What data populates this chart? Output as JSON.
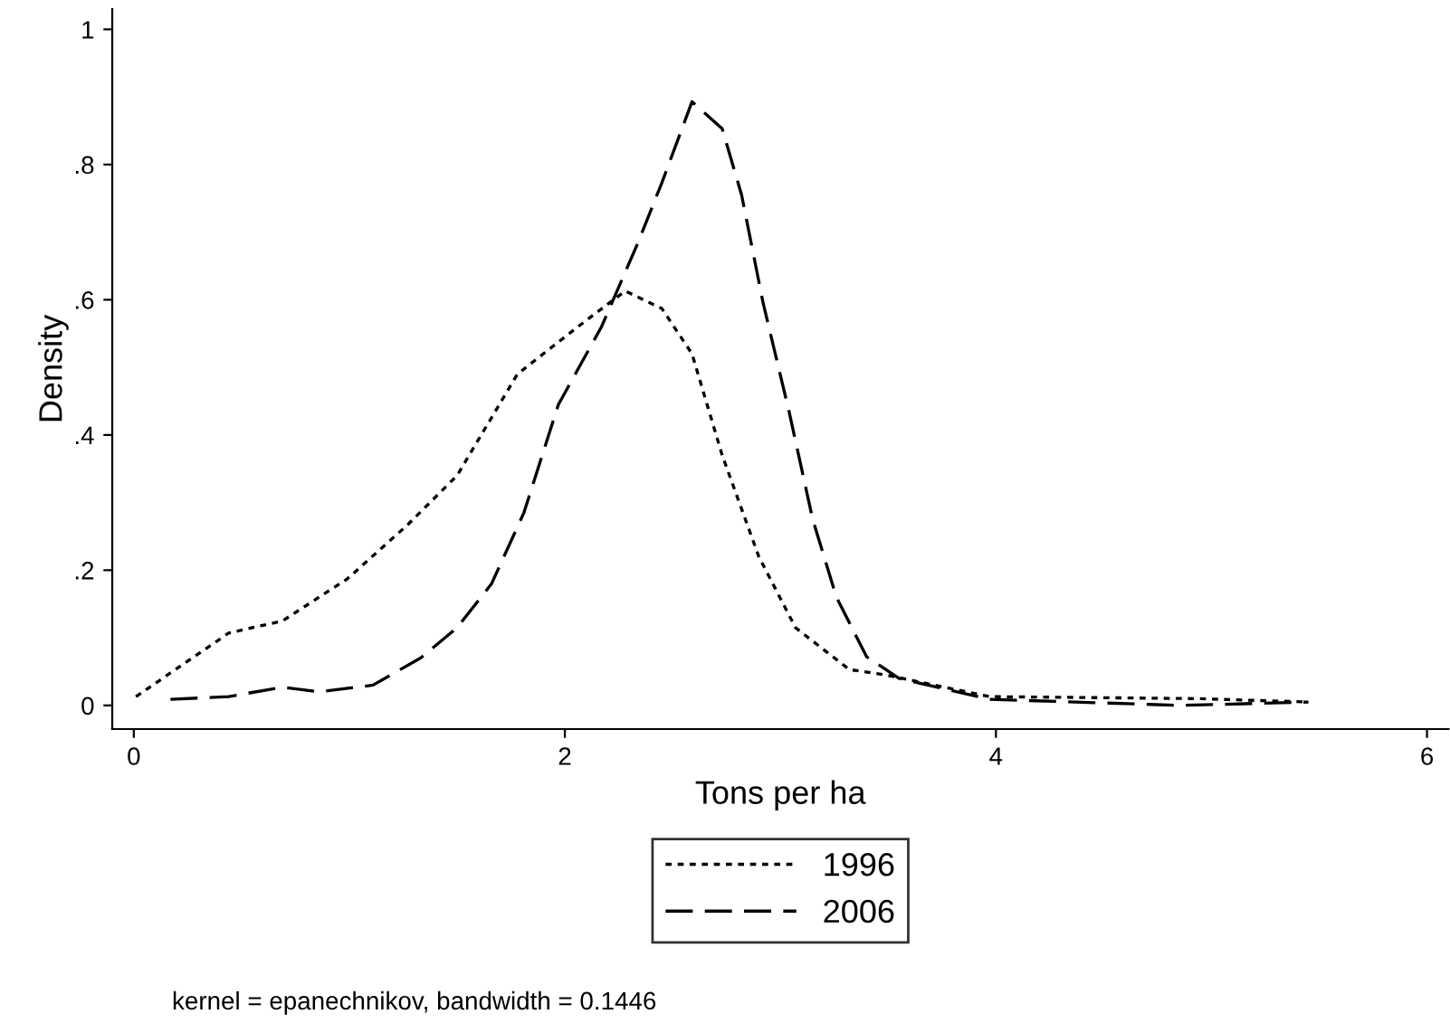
{
  "chart_data": {
    "type": "line",
    "xlabel": "Tons per ha",
    "ylabel": "Density",
    "xlim": [
      -0.1,
      6.1
    ],
    "ylim": [
      -0.035,
      1.03
    ],
    "xticks": [
      0,
      2,
      4,
      6
    ],
    "yticks": [
      0,
      {
        "value": 0.2,
        "label": ".2"
      },
      {
        "value": 0.4,
        "label": ".4"
      },
      {
        "value": 0.6,
        "label": ".6"
      },
      {
        "value": 0.8,
        "label": ".8"
      },
      1
    ],
    "grid": false,
    "legend": "bottom",
    "marker": "none",
    "series": [
      {
        "name": "1996",
        "color": "#000000",
        "line_style": "dotted",
        "x": [
          0.01,
          0.44,
          0.69,
          0.99,
          1.27,
          1.5,
          1.78,
          2.06,
          2.28,
          2.45,
          2.59,
          2.73,
          2.9,
          3.07,
          3.32,
          3.49,
          3.97,
          4.94,
          5.45
        ],
        "values": [
          0.013,
          0.107,
          0.125,
          0.187,
          0.267,
          0.34,
          0.49,
          0.56,
          0.613,
          0.587,
          0.52,
          0.37,
          0.22,
          0.115,
          0.053,
          0.045,
          0.013,
          0.01,
          0.005
        ]
      },
      {
        "name": "2006",
        "color": "#000000",
        "line_style": "dashed",
        "x": [
          0.17,
          0.44,
          0.69,
          0.86,
          1.11,
          1.33,
          1.5,
          1.66,
          1.81,
          1.97,
          2.17,
          2.34,
          2.45,
          2.59,
          2.73,
          2.82,
          2.92,
          3.04,
          3.15,
          3.26,
          3.4,
          3.55,
          3.97,
          4.86,
          5.45
        ],
        "values": [
          0.009,
          0.013,
          0.027,
          0.02,
          0.03,
          0.07,
          0.115,
          0.18,
          0.285,
          0.445,
          0.56,
          0.685,
          0.773,
          0.893,
          0.853,
          0.755,
          0.595,
          0.435,
          0.275,
          0.16,
          0.072,
          0.04,
          0.009,
          0.0,
          0.005
        ]
      }
    ],
    "annotations": [
      "kernel = epanechnikov, bandwidth = 0.1446"
    ]
  }
}
